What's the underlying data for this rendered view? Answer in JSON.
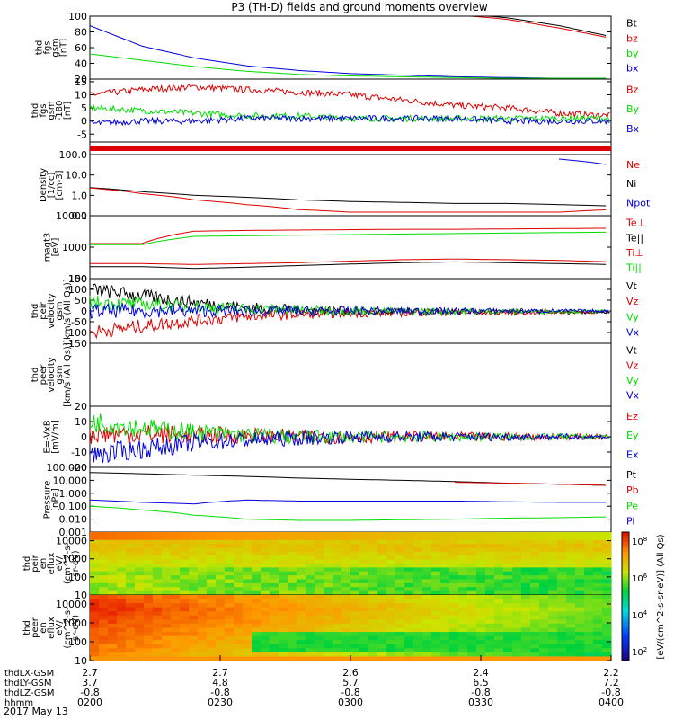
{
  "title": "P3 (TH-D) fields and ground moments overview",
  "date": "2017 May 13",
  "colors": {
    "black": "#000000",
    "red": "#dd0000",
    "green": "#00dd00",
    "blue": "#0000dd"
  },
  "chart_data": [
    {
      "type": "line",
      "ylabel": [
        "thd",
        "fgs",
        "gsm",
        "[nT]"
      ],
      "yticks": [
        "100",
        "80",
        "60",
        "40",
        "20"
      ],
      "ylim": [
        20,
        100
      ],
      "legend": [
        {
          "name": "Bt",
          "color": "black"
        },
        {
          "name": "bz",
          "color": "red"
        },
        {
          "name": "by",
          "color": "green"
        },
        {
          "name": "bx",
          "color": "blue"
        }
      ],
      "series": [
        {
          "name": "bx",
          "values": [
            88,
            62,
            47,
            37,
            31,
            27,
            25,
            23,
            22,
            21,
            21
          ]
        },
        {
          "name": "by",
          "values": [
            52,
            44,
            36,
            30,
            26,
            24,
            23,
            22,
            21,
            21,
            21
          ]
        },
        {
          "name": "bz",
          "values": [
            null,
            null,
            null,
            null,
            null,
            null,
            null,
            102,
            96,
            85,
            72
          ]
        },
        {
          "name": "Bt",
          "values": [
            null,
            null,
            null,
            null,
            null,
            null,
            null,
            104,
            98,
            88,
            74
          ]
        }
      ]
    },
    {
      "type": "line",
      "ylabel": [
        "thd",
        "fgs",
        "gsm",
        "-180",
        "[nT]"
      ],
      "yticks": [
        "15",
        "10",
        "5",
        "0",
        "-5"
      ],
      "ylim": [
        -8,
        16
      ],
      "legend": [
        {
          "name": "Bz",
          "color": "red"
        },
        {
          "name": "By",
          "color": "green"
        },
        {
          "name": "Bx",
          "color": "blue"
        }
      ],
      "series": [
        {
          "name": "Bz",
          "values": [
            10,
            12,
            13,
            12,
            11,
            10,
            8,
            6,
            5,
            3,
            2
          ]
        },
        {
          "name": "By",
          "values": [
            5,
            4,
            3,
            2,
            2,
            1,
            1,
            1,
            1,
            1,
            1
          ]
        },
        {
          "name": "Bx",
          "values": [
            -1,
            0,
            0,
            1,
            1,
            1,
            1,
            1,
            0,
            0,
            0
          ]
        }
      ]
    },
    {
      "type": "bar",
      "ylabel": [],
      "yticks": [],
      "legend": [],
      "band_color": "red"
    },
    {
      "type": "line",
      "ylabel": [
        "Density",
        "[1/cc]",
        "[cm-3]"
      ],
      "yticks": [
        "100.0",
        "10.0",
        "1.0",
        "0.1"
      ],
      "ylim": [
        0.1,
        100
      ],
      "scale": "log",
      "legend": [
        {
          "name": "Ne",
          "color": "red"
        },
        {
          "name": "Ni",
          "color": "black"
        },
        {
          "name": "Npot",
          "color": "blue"
        }
      ],
      "series": [
        {
          "name": "Ni",
          "values": [
            2.4,
            1.5,
            1.0,
            0.8,
            0.6,
            0.5,
            0.45,
            0.4,
            0.4,
            0.35,
            0.3
          ]
        },
        {
          "name": "Ne",
          "values": [
            2.3,
            1.2,
            0.6,
            0.35,
            0.2,
            0.15,
            0.15,
            0.15,
            0.15,
            0.15,
            0.2
          ]
        },
        {
          "name": "Npot",
          "values": [
            null,
            null,
            null,
            null,
            null,
            null,
            null,
            null,
            null,
            60,
            30
          ]
        }
      ]
    },
    {
      "type": "line",
      "ylabel": [
        "magt3",
        "[eV]"
      ],
      "yticks": [
        "10000",
        "1000",
        "100"
      ],
      "ylim": [
        100,
        10000
      ],
      "scale": "log",
      "legend": [
        {
          "name": "Te⊥",
          "color": "red"
        },
        {
          "name": "Te||",
          "color": "black"
        },
        {
          "name": "Ti⊥",
          "color": "red"
        },
        {
          "name": "Ti||",
          "color": "green"
        }
      ],
      "series": [
        {
          "name": "Ti⊥",
          "values": [
            1300,
            1300,
            3200,
            3400,
            3500,
            3600,
            3700,
            3700,
            3800,
            3900,
            4000
          ]
        },
        {
          "name": "Ti||",
          "values": [
            1200,
            1200,
            2200,
            2300,
            2400,
            2500,
            2600,
            2700,
            2800,
            2900,
            3000
          ]
        },
        {
          "name": "Te⊥",
          "values": [
            300,
            300,
            280,
            300,
            320,
            360,
            400,
            420,
            400,
            380,
            340
          ]
        },
        {
          "name": "Te||",
          "values": [
            240,
            240,
            210,
            230,
            260,
            290,
            320,
            340,
            320,
            300,
            280
          ]
        }
      ]
    },
    {
      "type": "line",
      "ylabel": [
        "thd",
        "peir",
        "velocity",
        "gsm",
        "[km/s (All Qs)]"
      ],
      "yticks": [
        "150",
        "100",
        "50",
        "0",
        "-50",
        "-100",
        "-150"
      ],
      "ylim": [
        -150,
        150
      ],
      "legend": [
        {
          "name": "Vt",
          "color": "black"
        },
        {
          "name": "Vz",
          "color": "red"
        },
        {
          "name": "Vy",
          "color": "green"
        },
        {
          "name": "Vx",
          "color": "blue"
        }
      ],
      "series": [
        {
          "name": "Vt",
          "values": [
            100,
            70,
            40,
            15,
            5,
            0,
            -5,
            -5,
            -5,
            -5,
            -5
          ]
        },
        {
          "name": "Vz",
          "values": [
            -100,
            -70,
            -45,
            -25,
            -15,
            -10,
            -8,
            -6,
            -6,
            -5,
            -5
          ]
        },
        {
          "name": "Vy",
          "values": [
            40,
            30,
            20,
            10,
            5,
            0,
            -2,
            -2,
            -2,
            -2,
            -2
          ]
        },
        {
          "name": "Vx",
          "values": [
            0,
            0,
            0,
            0,
            0,
            0,
            0,
            0,
            0,
            0,
            0
          ]
        }
      ]
    },
    {
      "type": "line",
      "ylabel": [
        "thd",
        "peer",
        "velocity",
        "gsm",
        "[km/s (All Qs)]"
      ],
      "yticks": [],
      "legend": [
        {
          "name": "Vt",
          "color": "black"
        },
        {
          "name": "Vz",
          "color": "red"
        },
        {
          "name": "Vy",
          "color": "green"
        },
        {
          "name": "Vx",
          "color": "blue"
        }
      ],
      "series": []
    },
    {
      "type": "line",
      "ylabel": [
        "E=-VxB",
        "[mV/m]"
      ],
      "yticks": [
        "20",
        "10",
        "0",
        "-10",
        "-20"
      ],
      "ylim": [
        -20,
        20
      ],
      "legend": [
        {
          "name": "Ez",
          "color": "red"
        },
        {
          "name": "Ey",
          "color": "green"
        },
        {
          "name": "Ex",
          "color": "blue"
        }
      ],
      "series": [
        {
          "name": "Ez",
          "values": [
            2,
            2,
            1,
            1,
            0,
            0,
            0,
            0,
            0,
            0,
            0
          ]
        },
        {
          "name": "Ey",
          "values": [
            10,
            6,
            3,
            1,
            0,
            0,
            0,
            0,
            0,
            0,
            0
          ]
        },
        {
          "name": "Ex",
          "values": [
            -12,
            -8,
            -4,
            -2,
            -1,
            0,
            0,
            0,
            0,
            0,
            0
          ]
        }
      ]
    },
    {
      "type": "line",
      "ylabel": [
        "Pressure",
        "[nPa]"
      ],
      "yticks": [
        "100.000",
        "10.000",
        "1.000",
        "0.100",
        "0.010",
        "0.001"
      ],
      "ylim": [
        0.001,
        100
      ],
      "scale": "log",
      "legend": [
        {
          "name": "Pt",
          "color": "black"
        },
        {
          "name": "Pb",
          "color": "red"
        },
        {
          "name": "Pe",
          "color": "green"
        },
        {
          "name": "Pi",
          "color": "blue"
        }
      ],
      "series": [
        {
          "name": "Pt",
          "values": [
            40,
            32,
            25,
            20,
            15,
            12,
            10,
            8,
            6,
            5,
            4
          ]
        },
        {
          "name": "Pb",
          "values": [
            null,
            null,
            null,
            null,
            null,
            null,
            null,
            7,
            6,
            5,
            4
          ]
        },
        {
          "name": "Pi",
          "values": [
            0.3,
            0.2,
            0.15,
            0.3,
            0.25,
            0.25,
            0.25,
            0.25,
            0.22,
            0.2,
            0.2
          ]
        },
        {
          "name": "Pe",
          "values": [
            0.1,
            0.05,
            0.02,
            0.01,
            0.008,
            0.008,
            0.009,
            0.01,
            0.012,
            0.013,
            0.015
          ]
        }
      ]
    },
    {
      "type": "heatmap",
      "ylabel": [
        "thd",
        "peir",
        "en",
        "eflux",
        "eV/",
        "(cm^2-s-",
        "sr-eV)"
      ],
      "yticks": [
        "10000",
        "1000",
        "100",
        "10"
      ],
      "ylim": [
        10,
        30000
      ],
      "scale": "log",
      "legend": []
    },
    {
      "type": "heatmap",
      "ylabel": [
        "thd",
        "peer",
        "en",
        "eflux",
        "eV/",
        "(cm^2-s-",
        "sr-eV)"
      ],
      "yticks": [
        "10000",
        "1000",
        "100",
        "10"
      ],
      "ylim": [
        10,
        30000
      ],
      "scale": "log",
      "legend": []
    }
  ],
  "colorbar": {
    "ticks": [
      "10^8",
      "10^6",
      "10^4",
      "10^2"
    ],
    "label": "[eV/(cm^2-s-sr-eV)] (All Qs)"
  },
  "xaxis": {
    "row_labels": [
      "thdLX-GSM",
      "thdLY-GSM",
      "thdLZ-GSM",
      "hhmm"
    ],
    "columns": [
      [
        "2.7",
        "3.7",
        "-0.8",
        "0200"
      ],
      [
        "2.7",
        "4.8",
        "-0.8",
        "0230"
      ],
      [
        "2.6",
        "5.7",
        "-0.8",
        "0300"
      ],
      [
        "2.4",
        "6.5",
        "-0.8",
        "0330"
      ],
      [
        "2.2",
        "7.2",
        "-0.8",
        "0400"
      ]
    ]
  }
}
